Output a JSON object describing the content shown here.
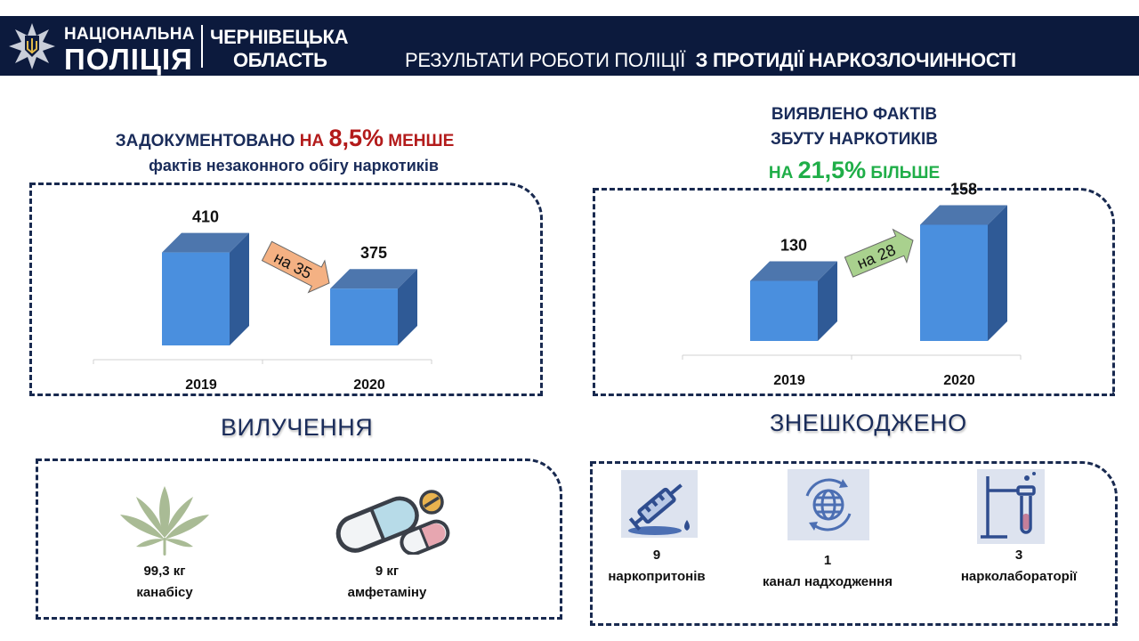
{
  "header": {
    "org_line1": "НАЦІОНАЛЬНА",
    "org_line2": "ПОЛІЦІЯ",
    "region_line1": "ЧЕРНІВЕЦЬКА",
    "region_line2": "ОБЛАСТЬ",
    "title_regular": "РЕЗУЛЬТАТИ РОБОТИ ПОЛІЦІЇ",
    "title_bold": "З ПРОТИДІЇ НАРКОЗЛОЧИННОСТІ"
  },
  "left_headline": {
    "part1": "ЗАДОКУМЕНТОВАНО ",
    "part2": "НА ",
    "percent": "8,5%",
    "part3": " МЕНШЕ",
    "line2": "фактів незаконного обігу наркотиків"
  },
  "right_headline": {
    "line1": "ВИЯВЛЕНО ФАКТІВ",
    "line2": "ЗБУТУ НАРКОТИКІВ",
    "part1": "НА ",
    "percent": "21,5%",
    "part2": " БІЛЬШЕ"
  },
  "chart_data": [
    {
      "type": "bar",
      "categories": [
        "2019",
        "2020"
      ],
      "values": [
        410,
        375
      ],
      "ylim": [
        320,
        420
      ],
      "arrow_label": "на 35",
      "colors": {
        "bar": "#4a8fde",
        "arrow": "#f4b183"
      }
    },
    {
      "type": "bar",
      "categories": [
        "2019",
        "2020"
      ],
      "values": [
        130,
        158
      ],
      "ylim": [
        100,
        160
      ],
      "arrow_label": "на 28",
      "colors": {
        "bar": "#4a8fde",
        "arrow": "#a9d18e"
      }
    }
  ],
  "seizure": {
    "title": "ВИЛУЧЕННЯ",
    "items": [
      {
        "icon": "cannabis-leaf-icon",
        "amount": "99,3 кг",
        "label": "канабісу"
      },
      {
        "icon": "pills-icon",
        "amount": "9 кг",
        "label": "амфетаміну"
      }
    ]
  },
  "neutralized": {
    "title": "ЗНЕШКОДЖЕНО",
    "items": [
      {
        "icon": "syringe-icon",
        "count": "9",
        "label": "наркопритонів"
      },
      {
        "icon": "globe-icon",
        "count": "1",
        "label": "канал надходження"
      },
      {
        "icon": "lab-icon",
        "count": "3",
        "label": "нарколабораторії"
      }
    ]
  }
}
